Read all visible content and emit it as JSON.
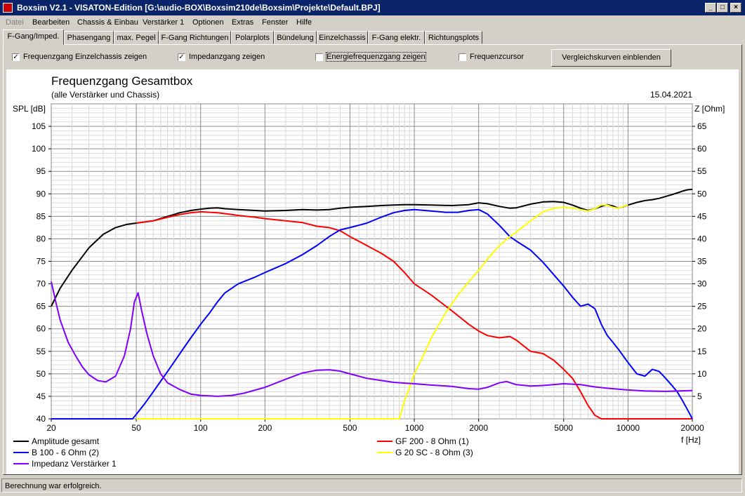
{
  "window": {
    "title": "Boxsim V2.1 - VISATON-Edition [G:\\audio-BOX\\Boxsim210de\\Boxsim\\Projekte\\Default.BPJ]"
  },
  "menu": [
    "Datei",
    "Bearbeiten",
    "Chassis & Einbau",
    "Verstärker 1",
    "Optionen",
    "Extras",
    "Fenster",
    "Hilfe"
  ],
  "tabs": [
    "F-Gang/Imped.",
    "Phasengang",
    "max. Pegel",
    "F-Gang Richtungen",
    "Polarplots",
    "Bündelung",
    "Einzelchassis",
    "F-Gang elektr.",
    "Richtungsplots"
  ],
  "options": [
    {
      "label": "Frequenzgang Einzelchassis zeigen",
      "checked": true
    },
    {
      "label": "Impedanzgang zeigen",
      "checked": true
    },
    {
      "label": "Energiefrequenzgang zeigen",
      "checked": false
    },
    {
      "label": "Frequenzcursor",
      "checked": false
    }
  ],
  "compare_button": "Vergleichskurven einblenden",
  "status": "Berechnung war erfolgreich.",
  "chart_data": {
    "type": "line",
    "title": "Frequenzgang Gesamtbox",
    "subtitle": "(alle Verstärker und Chassis)",
    "date": "15.04.2021",
    "ylabel": "SPL [dB]",
    "y2label": "Z [Ohm]",
    "xlabel": "f [Hz]",
    "xscale": "log",
    "xlim": [
      20,
      20000
    ],
    "ylim": [
      40,
      110
    ],
    "y2lim": [
      0,
      70
    ],
    "x_ticks": [
      "20",
      "50",
      "100",
      "200",
      "500",
      "1000",
      "2000",
      "5000",
      "10000",
      "20000"
    ],
    "y_ticks": [
      "40",
      "45",
      "50",
      "55",
      "60",
      "65",
      "70",
      "75",
      "80",
      "85",
      "90",
      "95",
      "100",
      "105"
    ],
    "y2_ticks": [
      "5",
      "10",
      "15",
      "20",
      "25",
      "30",
      "35",
      "40",
      "45",
      "50",
      "55",
      "60",
      "65"
    ],
    "grid": true,
    "legend_position": "bottom",
    "series": [
      {
        "name": "Amplitude gesamt",
        "color": "#000000",
        "axis": "left",
        "x": [
          20,
          22,
          25,
          30,
          35,
          40,
          45,
          50,
          60,
          70,
          80,
          90,
          100,
          110,
          120,
          130,
          150,
          180,
          200,
          250,
          300,
          350,
          400,
          450,
          500,
          600,
          700,
          800,
          900,
          1000,
          1200,
          1500,
          1800,
          2000,
          2200,
          2500,
          2800,
          3000,
          3500,
          4000,
          4500,
          5000,
          5500,
          6000,
          6500,
          7000,
          7500,
          8000,
          8500,
          9000,
          10000,
          11000,
          12000,
          13000,
          14000,
          15000,
          16000,
          17000,
          18000,
          19000,
          20000
        ],
        "y": [
          65,
          69,
          73,
          78,
          81,
          82.5,
          83.2,
          83.5,
          84,
          85,
          85.8,
          86.3,
          86.6,
          86.8,
          86.9,
          86.7,
          86.5,
          86.3,
          86.2,
          86.3,
          86.5,
          86.4,
          86.5,
          86.8,
          87,
          87.2,
          87.4,
          87.5,
          87.6,
          87.6,
          87.5,
          87.4,
          87.6,
          88,
          87.8,
          87.2,
          86.8,
          86.9,
          87.7,
          88.2,
          88.3,
          88.1,
          87.5,
          86.8,
          86.3,
          86.7,
          87.2,
          87.6,
          87.3,
          86.8,
          87.5,
          88.1,
          88.5,
          88.7,
          89,
          89.4,
          89.8,
          90.2,
          90.6,
          90.9,
          91
        ]
      },
      {
        "name": "GF 200 - 8 Ohm (1)",
        "color": "#ff0000",
        "axis": "left",
        "x": [
          50,
          60,
          70,
          80,
          90,
          100,
          120,
          140,
          150,
          180,
          200,
          250,
          300,
          350,
          400,
          450,
          500,
          600,
          700,
          800,
          900,
          1000,
          1200,
          1500,
          1800,
          2000,
          2200,
          2500,
          2800,
          3000,
          3500,
          4000,
          4500,
          5000,
          5500,
          6000,
          6500,
          7000,
          7500,
          8000,
          9000,
          10000,
          12000,
          15000,
          20000
        ],
        "y": [
          83.5,
          84,
          84.8,
          85.4,
          85.8,
          86,
          85.8,
          85.4,
          85.2,
          84.8,
          84.5,
          84,
          83.6,
          82.8,
          82.5,
          81.8,
          80.5,
          78.5,
          76.8,
          75,
          72.5,
          70,
          67.5,
          64,
          61,
          59.5,
          58.5,
          58,
          58.3,
          57.5,
          55,
          54.5,
          53,
          51,
          49,
          46,
          43,
          40.8,
          40,
          40,
          40,
          40,
          40,
          40,
          40
        ]
      },
      {
        "name": "B 100 - 6 Ohm (2)",
        "color": "#0000ff",
        "axis": "left",
        "x": [
          20,
          30,
          40,
          48,
          50,
          55,
          60,
          70,
          80,
          90,
          100,
          110,
          120,
          130,
          150,
          180,
          200,
          250,
          300,
          350,
          400,
          450,
          500,
          600,
          700,
          800,
          900,
          1000,
          1200,
          1400,
          1600,
          1800,
          2000,
          2200,
          2500,
          2800,
          3000,
          3500,
          4000,
          4500,
          5000,
          5500,
          6000,
          6500,
          7000,
          7500,
          8000,
          8500,
          9000,
          10000,
          11000,
          12000,
          13000,
          14000,
          15000,
          16000,
          17000,
          18000,
          19000,
          20000
        ],
        "y": [
          40,
          40,
          40,
          40,
          41,
          43.5,
          46,
          50.5,
          54.5,
          58,
          61,
          63.5,
          66,
          68,
          70,
          71.5,
          72.5,
          74.5,
          76.5,
          78.5,
          80.5,
          82,
          82.5,
          83.5,
          84.8,
          85.8,
          86.3,
          86.5,
          86.2,
          85.9,
          85.9,
          86.3,
          86.5,
          85.5,
          83,
          80.5,
          79.5,
          77.5,
          74.8,
          72,
          69.5,
          67,
          65,
          65.5,
          64.5,
          61,
          58.5,
          57,
          55.5,
          52.5,
          50,
          49.5,
          51,
          50.5,
          49,
          47.5,
          46,
          44,
          42,
          40
        ]
      },
      {
        "name": "G 20 SC - 8 Ohm (3)",
        "color": "#ffff00",
        "axis": "left",
        "x": [
          50,
          100,
          200,
          400,
          600,
          800,
          850,
          900,
          950,
          1000,
          1100,
          1200,
          1400,
          1600,
          1800,
          2000,
          2200,
          2500,
          2800,
          3000,
          3500,
          4000,
          4500,
          5000,
          5500,
          6000,
          6500,
          7000,
          7500,
          8000,
          8500,
          9000,
          9500,
          10000
        ],
        "y": [
          40,
          40,
          40,
          40,
          40,
          40,
          40,
          44,
          47,
          50,
          54,
          58,
          63.5,
          67.5,
          70.5,
          73,
          75.5,
          78.5,
          80.5,
          81.5,
          84,
          86,
          86.8,
          87,
          86.8,
          86.5,
          86.2,
          86.7,
          87.5,
          87.5,
          87,
          86.8,
          87.2,
          87.5
        ]
      },
      {
        "name": "Impedanz Verstärker 1",
        "color": "#8000ff",
        "axis": "right",
        "x": [
          20,
          21,
          22,
          24,
          26,
          28,
          30,
          33,
          36,
          40,
          44,
          47,
          49,
          51,
          53,
          56,
          60,
          65,
          70,
          80,
          90,
          100,
          120,
          140,
          160,
          200,
          250,
          300,
          350,
          400,
          450,
          500,
          600,
          800,
          1000,
          1200,
          1500,
          1800,
          2000,
          2200,
          2500,
          2700,
          3000,
          3500,
          4000,
          5000,
          6000,
          7000,
          8000,
          10000,
          12000,
          15000,
          20000
        ],
        "y": [
          30.5,
          26,
          22,
          17,
          14,
          11.5,
          9.8,
          8.5,
          8.2,
          9.5,
          14,
          20,
          26,
          28,
          24,
          19,
          14,
          10,
          8,
          6.5,
          5.5,
          5.2,
          5,
          5.2,
          5.7,
          7,
          8.8,
          10.2,
          10.8,
          10.9,
          10.6,
          10,
          9,
          8.1,
          7.8,
          7.5,
          7.2,
          6.7,
          6.6,
          7,
          8,
          8.3,
          7.6,
          7.3,
          7.4,
          7.8,
          7.6,
          7.1,
          6.8,
          6.4,
          6.2,
          6.1,
          6.3
        ]
      }
    ]
  }
}
